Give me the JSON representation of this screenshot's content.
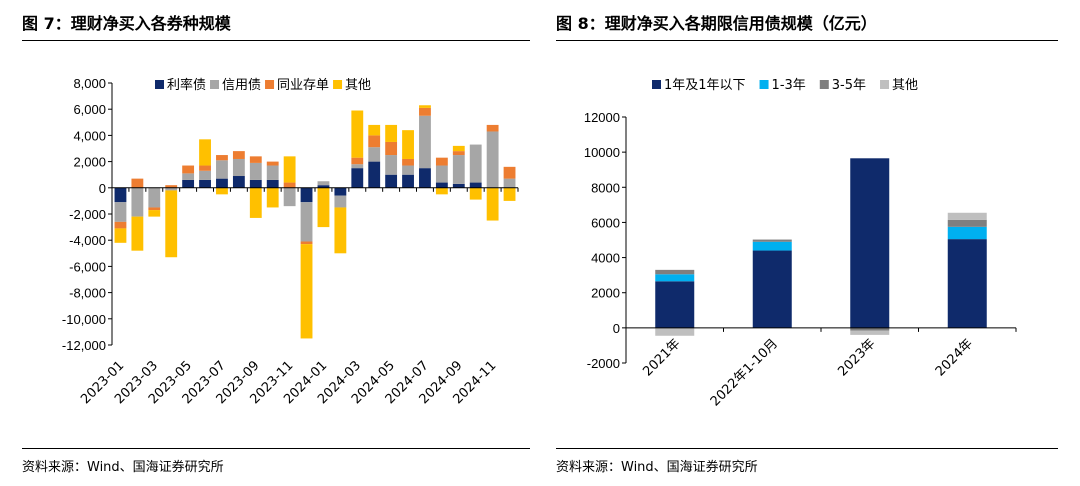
{
  "figure_left": {
    "title": "图 7：理财净买入各券种规模",
    "source": "资料来源：Wind、国海证券研究所"
  },
  "figure_right": {
    "title": "图 8：理财净买入各期限信用债规模（亿元）",
    "source": "资料来源：Wind、国海证券研究所"
  },
  "chart_data": [
    {
      "type": "bar",
      "stacked": true,
      "title": "理财净买入各券种规模",
      "xlabel": "",
      "ylabel": "",
      "ylim": [
        -12000,
        8000
      ],
      "yticks": [
        -12000,
        -10000,
        -8000,
        -6000,
        -4000,
        -2000,
        0,
        2000,
        4000,
        6000,
        8000
      ],
      "ytick_labels": [
        "-12,000",
        "-10,000",
        "-8,000",
        "-6,000",
        "-4,000",
        "-2,000",
        "0",
        "2,000",
        "4,000",
        "6,000",
        "8,000"
      ],
      "legend_position": "top",
      "categories": [
        "2023-01",
        "2023-02",
        "2023-03",
        "2023-04",
        "2023-05",
        "2023-06",
        "2023-07",
        "2023-08",
        "2023-09",
        "2023-10",
        "2023-11",
        "2023-12",
        "2024-01",
        "2024-02",
        "2024-03",
        "2024-04",
        "2024-05",
        "2024-06",
        "2024-07",
        "2024-08",
        "2024-09",
        "2024-10",
        "2024-11",
        "2024-12"
      ],
      "xtick_labels": [
        "2023-01",
        "2023-03",
        "2023-05",
        "2023-07",
        "2023-09",
        "2023-11",
        "2024-01",
        "2024-03",
        "2024-05",
        "2024-07",
        "2024-09",
        "2024-11"
      ],
      "series": [
        {
          "name": "利率债",
          "color": "#0f2a6b",
          "values": [
            -1100,
            0,
            0,
            0,
            600,
            600,
            700,
            900,
            600,
            600,
            0,
            -1100,
            200,
            -600,
            1500,
            2000,
            1000,
            1000,
            1500,
            400,
            300,
            400,
            0,
            0
          ]
        },
        {
          "name": "信用债",
          "color": "#a6a6a6",
          "values": [
            -1500,
            -2200,
            -1500,
            -200,
            500,
            700,
            1400,
            1300,
            1300,
            1100,
            -1400,
            -3000,
            300,
            -900,
            300,
            1100,
            1500,
            700,
            4000,
            1300,
            2200,
            2900,
            4300,
            700
          ]
        },
        {
          "name": "同业存单",
          "color": "#ed7d31",
          "values": [
            -500,
            700,
            -200,
            200,
            600,
            400,
            400,
            600,
            500,
            300,
            400,
            -200,
            0,
            0,
            500,
            900,
            1000,
            500,
            600,
            600,
            300,
            0,
            500,
            900
          ]
        },
        {
          "name": "其他",
          "color": "#ffc000",
          "values": [
            -1100,
            -2600,
            -500,
            -5100,
            0,
            2000,
            -500,
            0,
            -2300,
            -1500,
            2000,
            -7200,
            -3000,
            -3500,
            3600,
            800,
            1300,
            2200,
            200,
            -500,
            400,
            -900,
            -2500,
            -1000
          ]
        }
      ]
    },
    {
      "type": "bar",
      "stacked": true,
      "title": "理财净买入各期限信用债规模（亿元）",
      "xlabel": "",
      "ylabel": "",
      "ylim": [
        -2000,
        12000
      ],
      "yticks": [
        -2000,
        0,
        2000,
        4000,
        6000,
        8000,
        10000,
        12000
      ],
      "ytick_labels": [
        "-2000",
        "0",
        "2000",
        "4000",
        "6000",
        "8000",
        "10000",
        "12000"
      ],
      "legend_position": "top",
      "categories": [
        "2021年",
        "2022年1-10月",
        "2023年",
        "2024年"
      ],
      "series": [
        {
          "name": "1年及1年以下",
          "color": "#0f2a6b",
          "values": [
            2650,
            4400,
            9650,
            5050
          ]
        },
        {
          "name": "1-3年",
          "color": "#00b0f0",
          "values": [
            400,
            500,
            0,
            700
          ]
        },
        {
          "name": "3-5年",
          "color": "#7f7f7f",
          "values": [
            250,
            100,
            -150,
            400
          ]
        },
        {
          "name": "其他",
          "color": "#bfbfbf",
          "values": [
            -450,
            50,
            -250,
            400
          ]
        }
      ]
    }
  ]
}
